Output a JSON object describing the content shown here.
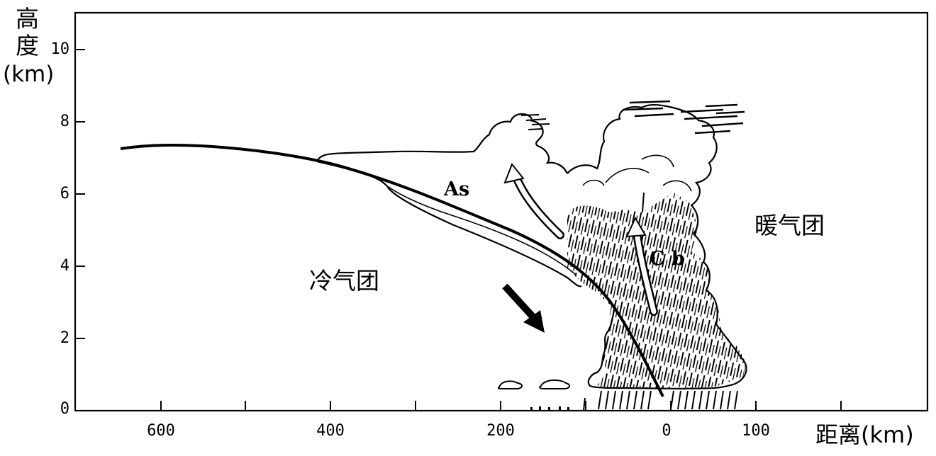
{
  "y_axis": {
    "label_line1": "高",
    "label_line2": "度",
    "label_unit": "(km)",
    "ticks": [
      "0",
      "2",
      "4",
      "6",
      "8",
      "10"
    ]
  },
  "x_axis": {
    "label": "距离(km)",
    "ticks": [
      "600",
      "400",
      "200",
      "0",
      "0",
      "100"
    ]
  },
  "labels": {
    "cold_air_mass": "冷气团",
    "warm_air_mass": "暖气团",
    "altostratus": "As",
    "cumulonimbus": "C b"
  },
  "colors": {
    "ink": "#000000",
    "background": "#ffffff"
  }
}
